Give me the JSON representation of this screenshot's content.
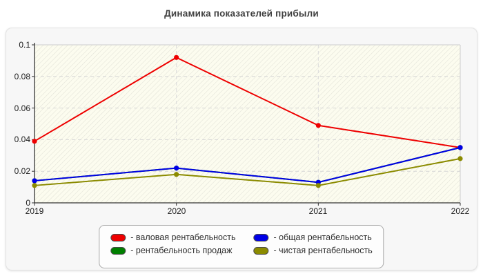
{
  "chart_data": {
    "type": "line",
    "title": "Динамика показателей прибыли",
    "categories": [
      "2019",
      "2020",
      "2021",
      "2022"
    ],
    "series": [
      {
        "name": "валовая рентабельность",
        "color": "#ee0000",
        "values": [
          0.039,
          0.092,
          0.049,
          0.035
        ]
      },
      {
        "name": "рентабельность продаж",
        "color": "#007f00",
        "values": [
          0.014,
          0.022,
          0.013,
          0.035
        ]
      },
      {
        "name": "общая рентабельность",
        "color": "#0000e6",
        "values": [
          0.014,
          0.022,
          0.013,
          0.035
        ]
      },
      {
        "name": "чистая рентабельность",
        "color": "#8b8b00",
        "values": [
          0.011,
          0.018,
          0.011,
          0.028
        ]
      }
    ],
    "ylim": [
      0,
      0.1
    ],
    "y_ticks": [
      "0.1",
      "0.08",
      "0.06",
      "0.04",
      "0.02",
      "0"
    ],
    "grid": "dashed horizontal and vertical",
    "legend_position": "bottom",
    "plot_background": "#fcfcef",
    "hatch_color": "#e3e3d8"
  },
  "legend": {
    "items": [
      {
        "label": "- валовая рентабельность",
        "color": "#ee0000"
      },
      {
        "label": "- общая рентабельность",
        "color": "#0000e6"
      },
      {
        "label": "- рентабельность продаж",
        "color": "#007f00"
      },
      {
        "label": "- чистая рентабельность",
        "color": "#8b8b00"
      }
    ]
  }
}
